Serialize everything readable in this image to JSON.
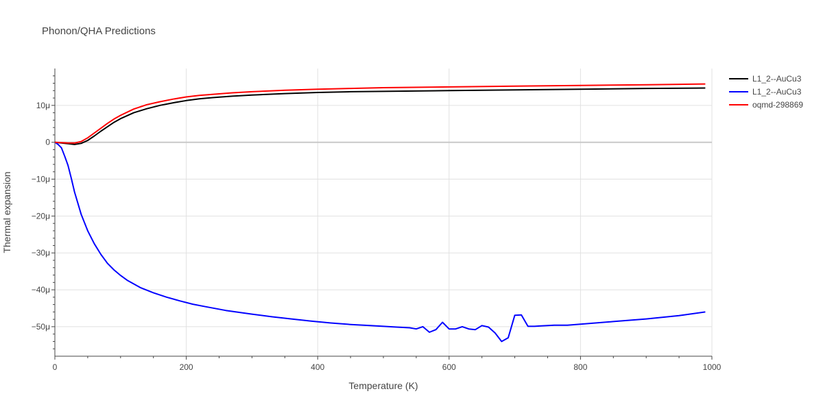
{
  "chart_data": {
    "type": "line",
    "title": "Phonon/QHA Predictions",
    "xlabel": "Temperature (K)",
    "ylabel": "Thermal expansion",
    "xlim": [
      0,
      1000
    ],
    "ylim": [
      -58,
      20
    ],
    "x_ticks": [
      {
        "value": 0,
        "label": "0"
      },
      {
        "value": 200,
        "label": "200"
      },
      {
        "value": 400,
        "label": "400"
      },
      {
        "value": 600,
        "label": "600"
      },
      {
        "value": 800,
        "label": "800"
      },
      {
        "value": 1000,
        "label": "1000"
      }
    ],
    "y_ticks": [
      {
        "value": 10,
        "label": "10μ"
      },
      {
        "value": 0,
        "label": "0"
      },
      {
        "value": -10,
        "label": "−10μ"
      },
      {
        "value": -20,
        "label": "−20μ"
      },
      {
        "value": -30,
        "label": "−30μ"
      },
      {
        "value": -40,
        "label": "−40μ"
      },
      {
        "value": -50,
        "label": "−50μ"
      }
    ],
    "grid": true,
    "legend_position": "right",
    "series": [
      {
        "name": "L1_2--AuCu3",
        "color": "#000000",
        "x": [
          0,
          10,
          20,
          30,
          40,
          50,
          60,
          70,
          80,
          90,
          100,
          120,
          140,
          160,
          180,
          200,
          220,
          240,
          270,
          300,
          350,
          400,
          450,
          500,
          600,
          700,
          800,
          900,
          990
        ],
        "y": [
          0,
          -0.2,
          -0.4,
          -0.6,
          -0.3,
          0.5,
          1.7,
          3.0,
          4.2,
          5.4,
          6.4,
          8.0,
          9.1,
          10.0,
          10.7,
          11.3,
          11.8,
          12.1,
          12.5,
          12.8,
          13.2,
          13.5,
          13.7,
          13.8,
          14.0,
          14.2,
          14.4,
          14.6,
          14.7
        ]
      },
      {
        "name": "L1_2--AuCu3",
        "color": "#0000ff",
        "x": [
          0,
          5,
          10,
          15,
          20,
          25,
          30,
          40,
          50,
          60,
          70,
          80,
          90,
          100,
          110,
          130,
          150,
          170,
          190,
          210,
          230,
          260,
          300,
          330,
          360,
          390,
          420,
          450,
          480,
          500,
          520,
          540,
          550,
          560,
          570,
          580,
          590,
          600,
          610,
          620,
          630,
          640,
          650,
          660,
          670,
          680,
          690,
          700,
          710,
          720,
          730,
          740,
          760,
          780,
          800,
          850,
          900,
          950,
          990
        ],
        "y": [
          0,
          -0.6,
          -1.5,
          -3.8,
          -6.3,
          -9.8,
          -13.5,
          -19.5,
          -24.0,
          -27.5,
          -30.4,
          -32.8,
          -34.6,
          -36.1,
          -37.4,
          -39.4,
          -40.8,
          -42.0,
          -43.0,
          -43.9,
          -44.6,
          -45.6,
          -46.6,
          -47.3,
          -47.9,
          -48.5,
          -49.0,
          -49.4,
          -49.7,
          -49.9,
          -50.1,
          -50.3,
          -50.6,
          -50.0,
          -51.5,
          -50.8,
          -48.8,
          -50.6,
          -50.6,
          -50.0,
          -50.6,
          -50.8,
          -49.7,
          -50.1,
          -51.7,
          -54.0,
          -53.0,
          -46.9,
          -46.8,
          -49.9,
          -49.9,
          -49.8,
          -49.6,
          -49.6,
          -49.3,
          -48.6,
          -47.9,
          -47.0,
          -46.0
        ]
      },
      {
        "name": "oqmd-298869",
        "color": "#ff0000",
        "x": [
          0,
          10,
          20,
          30,
          40,
          50,
          60,
          70,
          80,
          90,
          100,
          120,
          140,
          160,
          180,
          200,
          220,
          240,
          270,
          300,
          350,
          400,
          450,
          500,
          600,
          700,
          800,
          900,
          990
        ],
        "y": [
          0,
          -0.1,
          -0.2,
          -0.2,
          0.2,
          1.2,
          2.5,
          3.8,
          5.1,
          6.3,
          7.3,
          9.0,
          10.2,
          11.0,
          11.7,
          12.3,
          12.7,
          13.0,
          13.4,
          13.7,
          14.1,
          14.4,
          14.6,
          14.8,
          15.0,
          15.2,
          15.4,
          15.6,
          15.8
        ]
      }
    ]
  }
}
